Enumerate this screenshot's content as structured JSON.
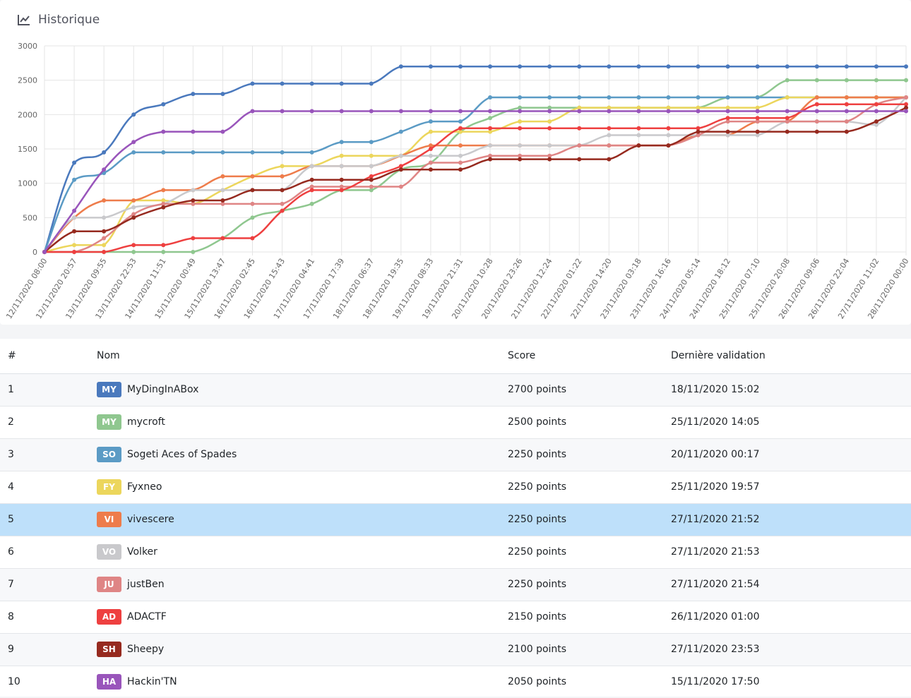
{
  "header": {
    "title": "Historique",
    "icon": "line-chart-icon"
  },
  "chart_data": {
    "type": "line",
    "ylim": [
      0,
      3000
    ],
    "yticks": [
      0,
      500,
      1000,
      1500,
      2000,
      2500,
      3000
    ],
    "grid": true,
    "x": [
      "12/11/2020 08:00",
      "12/11/2020 20:57",
      "13/11/2020 09:55",
      "13/11/2020 22:53",
      "14/11/2020 11:51",
      "15/11/2020 00:49",
      "15/11/2020 13:47",
      "16/11/2020 02:45",
      "16/11/2020 15:43",
      "17/11/2020 04:41",
      "17/11/2020 17:39",
      "18/11/2020 06:37",
      "18/11/2020 19:35",
      "19/11/2020 08:33",
      "19/11/2020 21:31",
      "20/11/2020 10:28",
      "20/11/2020 23:26",
      "21/11/2020 12:24",
      "22/11/2020 01:22",
      "22/11/2020 14:20",
      "23/11/2020 03:18",
      "23/11/2020 16:16",
      "24/11/2020 05:14",
      "24/11/2020 18:12",
      "25/11/2020 07:10",
      "25/11/2020 20:08",
      "26/11/2020 09:06",
      "26/11/2020 22:04",
      "27/11/2020 11:02",
      "28/11/2020 00:00"
    ],
    "series": [
      {
        "name": "MyDingInABox",
        "color": "#4a79bd",
        "values": [
          0,
          1300,
          1450,
          2000,
          2150,
          2300,
          2300,
          2450,
          2450,
          2450,
          2450,
          2450,
          2700,
          2700,
          2700,
          2700,
          2700,
          2700,
          2700,
          2700,
          2700,
          2700,
          2700,
          2700,
          2700,
          2700,
          2700,
          2700,
          2700,
          2700
        ]
      },
      {
        "name": "mycroft",
        "color": "#8fc78f",
        "values": [
          0,
          0,
          0,
          0,
          0,
          0,
          200,
          500,
          600,
          700,
          900,
          900,
          1200,
          1300,
          1750,
          1950,
          2100,
          2100,
          2100,
          2100,
          2100,
          2100,
          2100,
          2250,
          2250,
          2500,
          2500,
          2500,
          2500,
          2500
        ]
      },
      {
        "name": "Sogeti Aces of Spades",
        "color": "#5b9bc5",
        "values": [
          0,
          1050,
          1150,
          1450,
          1450,
          1450,
          1450,
          1450,
          1450,
          1450,
          1600,
          1600,
          1750,
          1900,
          1900,
          2250,
          2250,
          2250,
          2250,
          2250,
          2250,
          2250,
          2250,
          2250,
          2250,
          2250,
          2250,
          2250,
          2250,
          2250
        ]
      },
      {
        "name": "Fyxneo",
        "color": "#ecd65c",
        "values": [
          0,
          100,
          100,
          750,
          750,
          700,
          900,
          1100,
          1250,
          1250,
          1400,
          1400,
          1400,
          1750,
          1750,
          1750,
          1900,
          1900,
          2100,
          2100,
          2100,
          2100,
          2100,
          2100,
          2100,
          2250,
          2250,
          2250,
          2250,
          2250
        ]
      },
      {
        "name": "vivescere",
        "color": "#ee7c4b",
        "values": [
          0,
          500,
          750,
          750,
          900,
          900,
          1100,
          1100,
          1100,
          1250,
          1250,
          1250,
          1400,
          1550,
          1550,
          1550,
          1550,
          1550,
          1550,
          1550,
          1550,
          1550,
          1700,
          1700,
          1900,
          1900,
          2250,
          2250,
          2250,
          2250
        ]
      },
      {
        "name": "Volker",
        "color": "#c9c9cc",
        "values": [
          0,
          500,
          500,
          650,
          700,
          900,
          900,
          900,
          900,
          1250,
          1250,
          1250,
          1400,
          1400,
          1400,
          1550,
          1550,
          1550,
          1550,
          1700,
          1700,
          1700,
          1700,
          1700,
          1700,
          1900,
          1900,
          1900,
          1850,
          2250
        ]
      },
      {
        "name": "justBen",
        "color": "#df8585",
        "values": [
          0,
          0,
          200,
          550,
          700,
          700,
          700,
          700,
          700,
          950,
          950,
          950,
          950,
          1300,
          1300,
          1400,
          1400,
          1400,
          1550,
          1550,
          1550,
          1550,
          1700,
          1900,
          1900,
          1900,
          1900,
          1900,
          2150,
          2250
        ]
      },
      {
        "name": "ADACTF",
        "color": "#ee4040",
        "values": [
          0,
          0,
          0,
          100,
          100,
          200,
          200,
          200,
          600,
          900,
          900,
          1100,
          1250,
          1500,
          1800,
          1800,
          1800,
          1800,
          1800,
          1800,
          1800,
          1800,
          1800,
          1950,
          1950,
          1950,
          2150,
          2150,
          2150,
          2150
        ]
      },
      {
        "name": "Sheepy",
        "color": "#962a1f",
        "values": [
          0,
          300,
          300,
          500,
          650,
          750,
          750,
          900,
          900,
          1050,
          1050,
          1050,
          1200,
          1200,
          1200,
          1350,
          1350,
          1350,
          1350,
          1350,
          1550,
          1550,
          1750,
          1750,
          1750,
          1750,
          1750,
          1750,
          1900,
          2100
        ]
      },
      {
        "name": "Hackin'TN",
        "color": "#9955bb",
        "values": [
          0,
          600,
          1200,
          1600,
          1750,
          1750,
          1750,
          2050,
          2050,
          2050,
          2050,
          2050,
          2050,
          2050,
          2050,
          2050,
          2050,
          2050,
          2050,
          2050,
          2050,
          2050,
          2050,
          2050,
          2050,
          2050,
          2050,
          2050,
          2050,
          2050
        ]
      }
    ]
  },
  "table": {
    "headers": {
      "rank": "#",
      "name": "Nom",
      "score": "Score",
      "last": "Dernière validation"
    },
    "rows": [
      {
        "rank": "1",
        "badge": "MY",
        "color": "#4a79bd",
        "name": "MyDingInABox",
        "score": "2700 points",
        "last": "18/11/2020 15:02"
      },
      {
        "rank": "2",
        "badge": "MY",
        "color": "#8fc78f",
        "name": "mycroft",
        "score": "2500 points",
        "last": "25/11/2020 14:05"
      },
      {
        "rank": "3",
        "badge": "SO",
        "color": "#5b9bc5",
        "name": "Sogeti Aces of Spades",
        "score": "2250 points",
        "last": "20/11/2020 00:17"
      },
      {
        "rank": "4",
        "badge": "FY",
        "color": "#ecd65c",
        "name": "Fyxneo",
        "score": "2250 points",
        "last": "25/11/2020 19:57"
      },
      {
        "rank": "5",
        "badge": "VI",
        "color": "#ee7c4b",
        "name": "vivescere",
        "score": "2250 points",
        "last": "27/11/2020 21:52",
        "highlight": true
      },
      {
        "rank": "6",
        "badge": "VO",
        "color": "#c9c9cc",
        "name": "Volker",
        "score": "2250 points",
        "last": "27/11/2020 21:53"
      },
      {
        "rank": "7",
        "badge": "JU",
        "color": "#df8585",
        "name": "justBen",
        "score": "2250 points",
        "last": "27/11/2020 21:54"
      },
      {
        "rank": "8",
        "badge": "AD",
        "color": "#ee4040",
        "name": "ADACTF",
        "score": "2150 points",
        "last": "26/11/2020 01:00"
      },
      {
        "rank": "9",
        "badge": "SH",
        "color": "#962a1f",
        "name": "Sheepy",
        "score": "2100 points",
        "last": "27/11/2020 23:53"
      },
      {
        "rank": "10",
        "badge": "HA",
        "color": "#9955bb",
        "name": "Hackin'TN",
        "score": "2050 points",
        "last": "15/11/2020 17:50"
      }
    ]
  }
}
